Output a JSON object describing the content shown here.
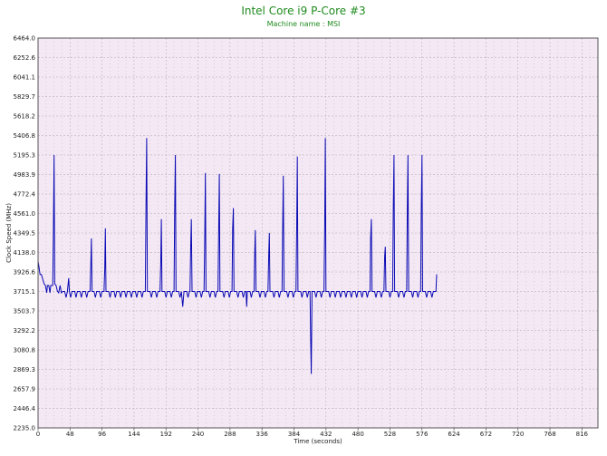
{
  "title": "Intel Core i9 P-Core #3",
  "subtitle": "Machine name : MSI",
  "colors": {
    "plot_bg": "#f5e8f5",
    "grid": "#a9a9a9",
    "line": "#0a0ab4",
    "title": "#1f8a1f"
  },
  "chart_data": {
    "type": "line",
    "title": "Intel Core i9 P-Core #3",
    "subtitle": "Machine name : MSI",
    "xlabel": "Time (seconds)",
    "ylabel": "Clock Speed (MHz)",
    "xlim": [
      0,
      840
    ],
    "ylim": [
      2235.0,
      6464.0
    ],
    "grid": true,
    "x_ticks": [
      "0",
      "48",
      "96",
      "144",
      "192",
      "240",
      "288",
      "336",
      "384",
      "432",
      "480",
      "528",
      "576",
      "624",
      "672",
      "720",
      "768",
      "816"
    ],
    "y_ticks": [
      "6464.0",
      "6252.6",
      "6041.1",
      "5829.7",
      "5618.2",
      "5406.8",
      "5195.3",
      "4983.9",
      "4772.4",
      "4561.0",
      "4349.5",
      "4138.0",
      "3926.6",
      "3715.1",
      "3503.7",
      "3292.2",
      "3080.8",
      "2869.3",
      "2657.9",
      "2446.4",
      "2235.0"
    ],
    "baseline_mhz": 3715,
    "series": [
      {
        "points": [
          [
            0,
            4040
          ],
          [
            1,
            4000
          ],
          [
            3,
            3900
          ],
          [
            5,
            3900
          ],
          [
            7,
            3850
          ],
          [
            9,
            3800
          ],
          [
            11,
            3780
          ],
          [
            13,
            3700
          ],
          [
            14,
            3780
          ],
          [
            16,
            3780
          ],
          [
            18,
            3700
          ],
          [
            19,
            3780
          ],
          [
            22,
            3780
          ],
          [
            23,
            4300
          ],
          [
            24,
            5195
          ],
          [
            25,
            3800
          ],
          [
            27,
            3780
          ],
          [
            29,
            3720
          ],
          [
            31,
            3700
          ],
          [
            33,
            3780
          ],
          [
            35,
            3700
          ],
          [
            37,
            3715
          ],
          [
            40,
            3715
          ],
          [
            42,
            3650
          ],
          [
            44,
            3715
          ],
          [
            46,
            3860
          ],
          [
            47,
            3715
          ],
          [
            49,
            3650
          ],
          [
            51,
            3715
          ],
          [
            55,
            3715
          ],
          [
            57,
            3650
          ],
          [
            59,
            3715
          ],
          [
            63,
            3715
          ],
          [
            65,
            3650
          ],
          [
            67,
            3715
          ],
          [
            71,
            3715
          ],
          [
            73,
            3650
          ],
          [
            75,
            3715
          ],
          [
            78,
            3715
          ],
          [
            79,
            3950
          ],
          [
            80,
            4290
          ],
          [
            81,
            3715
          ],
          [
            84,
            3715
          ],
          [
            86,
            3650
          ],
          [
            88,
            3715
          ],
          [
            92,
            3715
          ],
          [
            94,
            3650
          ],
          [
            96,
            3715
          ],
          [
            99,
            3715
          ],
          [
            100,
            3950
          ],
          [
            101,
            4400
          ],
          [
            102,
            3715
          ],
          [
            106,
            3715
          ],
          [
            108,
            3650
          ],
          [
            110,
            3715
          ],
          [
            114,
            3715
          ],
          [
            116,
            3650
          ],
          [
            118,
            3715
          ],
          [
            122,
            3715
          ],
          [
            124,
            3650
          ],
          [
            126,
            3715
          ],
          [
            130,
            3715
          ],
          [
            132,
            3650
          ],
          [
            134,
            3715
          ],
          [
            138,
            3715
          ],
          [
            140,
            3650
          ],
          [
            142,
            3715
          ],
          [
            146,
            3715
          ],
          [
            148,
            3650
          ],
          [
            150,
            3715
          ],
          [
            154,
            3715
          ],
          [
            156,
            3650
          ],
          [
            158,
            3715
          ],
          [
            161,
            3715
          ],
          [
            162,
            4700
          ],
          [
            163,
            5380
          ],
          [
            164,
            3715
          ],
          [
            168,
            3715
          ],
          [
            170,
            3650
          ],
          [
            172,
            3715
          ],
          [
            176,
            3715
          ],
          [
            178,
            3650
          ],
          [
            180,
            3715
          ],
          [
            183,
            3715
          ],
          [
            184,
            4000
          ],
          [
            185,
            4500
          ],
          [
            186,
            3715
          ],
          [
            190,
            3715
          ],
          [
            192,
            3650
          ],
          [
            194,
            3715
          ],
          [
            198,
            3715
          ],
          [
            200,
            3650
          ],
          [
            202,
            3715
          ],
          [
            204,
            3715
          ],
          [
            205,
            4600
          ],
          [
            206,
            5195
          ],
          [
            207,
            3715
          ],
          [
            211,
            3715
          ],
          [
            213,
            3650
          ],
          [
            215,
            3715
          ],
          [
            217,
            3550
          ],
          [
            219,
            3715
          ],
          [
            223,
            3715
          ],
          [
            225,
            3650
          ],
          [
            227,
            3715
          ],
          [
            228,
            3715
          ],
          [
            229,
            4200
          ],
          [
            230,
            4500
          ],
          [
            231,
            3715
          ],
          [
            235,
            3715
          ],
          [
            237,
            3650
          ],
          [
            239,
            3715
          ],
          [
            243,
            3715
          ],
          [
            245,
            3650
          ],
          [
            247,
            3715
          ],
          [
            249,
            3715
          ],
          [
            250,
            4200
          ],
          [
            251,
            5000
          ],
          [
            252,
            3715
          ],
          [
            256,
            3715
          ],
          [
            258,
            3650
          ],
          [
            260,
            3715
          ],
          [
            264,
            3715
          ],
          [
            266,
            3650
          ],
          [
            268,
            3715
          ],
          [
            270,
            3715
          ],
          [
            271,
            4400
          ],
          [
            272,
            4990
          ],
          [
            273,
            3715
          ],
          [
            277,
            3715
          ],
          [
            279,
            3650
          ],
          [
            281,
            3715
          ],
          [
            285,
            3715
          ],
          [
            287,
            3650
          ],
          [
            289,
            3715
          ],
          [
            291,
            3715
          ],
          [
            292,
            4400
          ],
          [
            293,
            4620
          ],
          [
            294,
            3715
          ],
          [
            298,
            3715
          ],
          [
            300,
            3650
          ],
          [
            302,
            3715
          ],
          [
            306,
            3715
          ],
          [
            308,
            3650
          ],
          [
            310,
            3715
          ],
          [
            312,
            3715
          ],
          [
            313,
            3550
          ],
          [
            314,
            3715
          ],
          [
            318,
            3715
          ],
          [
            320,
            3650
          ],
          [
            322,
            3715
          ],
          [
            324,
            3715
          ],
          [
            325,
            4100
          ],
          [
            326,
            4380
          ],
          [
            327,
            3715
          ],
          [
            331,
            3715
          ],
          [
            333,
            3650
          ],
          [
            335,
            3715
          ],
          [
            339,
            3715
          ],
          [
            341,
            3650
          ],
          [
            343,
            3715
          ],
          [
            345,
            3715
          ],
          [
            346,
            4100
          ],
          [
            347,
            4350
          ],
          [
            348,
            3715
          ],
          [
            352,
            3715
          ],
          [
            354,
            3650
          ],
          [
            356,
            3715
          ],
          [
            360,
            3715
          ],
          [
            362,
            3650
          ],
          [
            364,
            3715
          ],
          [
            366,
            3715
          ],
          [
            367,
            4400
          ],
          [
            368,
            4970
          ],
          [
            369,
            3715
          ],
          [
            373,
            3715
          ],
          [
            375,
            3650
          ],
          [
            377,
            3715
          ],
          [
            381,
            3715
          ],
          [
            383,
            3650
          ],
          [
            385,
            3715
          ],
          [
            387,
            3715
          ],
          [
            388,
            4400
          ],
          [
            389,
            5180
          ],
          [
            390,
            3715
          ],
          [
            394,
            3715
          ],
          [
            396,
            3650
          ],
          [
            398,
            3715
          ],
          [
            402,
            3715
          ],
          [
            404,
            3650
          ],
          [
            406,
            3715
          ],
          [
            408,
            3715
          ],
          [
            409,
            3200
          ],
          [
            410,
            2820
          ],
          [
            411,
            3715
          ],
          [
            415,
            3715
          ],
          [
            417,
            3650
          ],
          [
            419,
            3715
          ],
          [
            423,
            3715
          ],
          [
            425,
            3650
          ],
          [
            427,
            3715
          ],
          [
            429,
            3715
          ],
          [
            430,
            4400
          ],
          [
            431,
            5380
          ],
          [
            432,
            3715
          ],
          [
            436,
            3715
          ],
          [
            438,
            3650
          ],
          [
            440,
            3715
          ],
          [
            444,
            3715
          ],
          [
            446,
            3650
          ],
          [
            448,
            3715
          ],
          [
            452,
            3715
          ],
          [
            454,
            3650
          ],
          [
            456,
            3715
          ],
          [
            460,
            3715
          ],
          [
            462,
            3650
          ],
          [
            464,
            3715
          ],
          [
            468,
            3715
          ],
          [
            470,
            3650
          ],
          [
            472,
            3715
          ],
          [
            476,
            3715
          ],
          [
            478,
            3650
          ],
          [
            480,
            3715
          ],
          [
            484,
            3715
          ],
          [
            486,
            3650
          ],
          [
            488,
            3715
          ],
          [
            492,
            3715
          ],
          [
            494,
            3650
          ],
          [
            496,
            3715
          ],
          [
            498,
            3715
          ],
          [
            499,
            4300
          ],
          [
            500,
            4500
          ],
          [
            501,
            3715
          ],
          [
            505,
            3715
          ],
          [
            507,
            3650
          ],
          [
            509,
            3715
          ],
          [
            513,
            3715
          ],
          [
            515,
            3650
          ],
          [
            517,
            3715
          ],
          [
            519,
            3715
          ],
          [
            520,
            4100
          ],
          [
            521,
            4200
          ],
          [
            522,
            3715
          ],
          [
            526,
            3715
          ],
          [
            528,
            3650
          ],
          [
            530,
            3715
          ],
          [
            532,
            3715
          ],
          [
            533,
            4600
          ],
          [
            534,
            5195
          ],
          [
            535,
            3715
          ],
          [
            539,
            3715
          ],
          [
            541,
            3650
          ],
          [
            543,
            3715
          ],
          [
            547,
            3715
          ],
          [
            549,
            3650
          ],
          [
            551,
            3715
          ],
          [
            553,
            3715
          ],
          [
            554,
            4600
          ],
          [
            555,
            5195
          ],
          [
            556,
            3715
          ],
          [
            560,
            3715
          ],
          [
            562,
            3650
          ],
          [
            564,
            3715
          ],
          [
            568,
            3715
          ],
          [
            570,
            3650
          ],
          [
            572,
            3715
          ],
          [
            574,
            3715
          ],
          [
            575,
            4600
          ],
          [
            576,
            5195
          ],
          [
            577,
            3715
          ],
          [
            581,
            3715
          ],
          [
            583,
            3650
          ],
          [
            585,
            3715
          ],
          [
            589,
            3715
          ],
          [
            591,
            3650
          ],
          [
            593,
            3715
          ],
          [
            597,
            3715
          ],
          [
            598,
            3900
          ]
        ]
      }
    ]
  }
}
